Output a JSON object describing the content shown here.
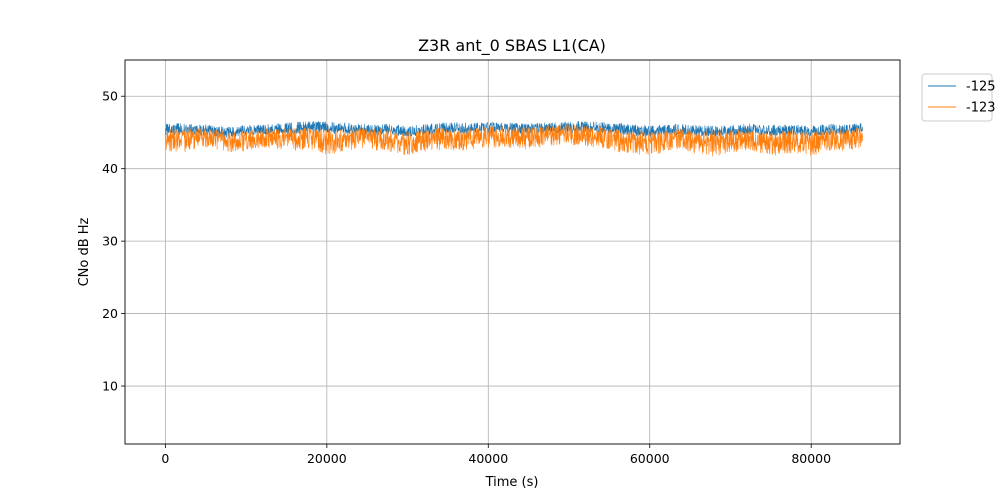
{
  "chart_data": {
    "type": "line",
    "title": "Z3R ant_0 SBAS L1(CA)",
    "xlabel": "Time (s)",
    "ylabel": "CNo dB Hz",
    "xlim": [
      -5000,
      91000
    ],
    "ylim": [
      2,
      55
    ],
    "xticks": [
      0,
      20000,
      40000,
      60000,
      80000
    ],
    "xtick_labels": [
      "0",
      "20000",
      "40000",
      "60000",
      "80000"
    ],
    "yticks": [
      10,
      20,
      30,
      40,
      50
    ],
    "ytick_labels": [
      "10",
      "20",
      "30",
      "40",
      "50"
    ],
    "grid": true,
    "legend_position": "upper-right-outside",
    "x_range_of_series": [
      0,
      86400
    ],
    "series": [
      {
        "name": "-125",
        "color": "#1f77b4",
        "x": [
          0,
          2000,
          4000,
          6000,
          8000,
          10000,
          12000,
          14000,
          16000,
          18000,
          20000,
          22000,
          24000,
          26000,
          28000,
          30000,
          32000,
          34000,
          36000,
          38000,
          40000,
          42000,
          44000,
          46000,
          48000,
          50000,
          52000,
          54000,
          56000,
          58000,
          60000,
          62000,
          64000,
          66000,
          68000,
          70000,
          72000,
          74000,
          76000,
          78000,
          80000,
          82000,
          84000,
          86000
        ],
        "mean": [
          45.2,
          45.3,
          45.2,
          45.1,
          44.9,
          45.1,
          45.2,
          45.3,
          45.4,
          45.6,
          45.5,
          45.4,
          45.3,
          45.2,
          45.3,
          44.9,
          45.2,
          45.4,
          45.5,
          45.4,
          45.5,
          45.6,
          45.3,
          45.4,
          45.5,
          45.5,
          45.6,
          45.5,
          45.4,
          45.2,
          45.0,
          45.2,
          45.3,
          45.1,
          45.0,
          45.1,
          45.3,
          45.2,
          45.1,
          45.2,
          45.0,
          45.3,
          45.2,
          45.5
        ],
        "min": [
          44.6,
          44.7,
          44.6,
          44.5,
          44.3,
          44.6,
          44.7,
          44.7,
          44.8,
          45.0,
          44.9,
          44.8,
          44.7,
          44.6,
          44.7,
          44.3,
          44.6,
          44.8,
          44.9,
          44.8,
          44.9,
          45.0,
          44.7,
          44.8,
          44.9,
          44.9,
          45.0,
          44.9,
          44.8,
          44.6,
          44.4,
          44.6,
          44.7,
          44.5,
          44.4,
          44.5,
          44.7,
          44.6,
          44.5,
          44.6,
          44.4,
          44.7,
          44.6,
          44.9
        ],
        "max": [
          46.2,
          46.3,
          46.2,
          46.0,
          45.8,
          46.0,
          46.1,
          46.3,
          46.4,
          46.6,
          46.5,
          46.4,
          46.2,
          46.1,
          46.2,
          45.9,
          46.1,
          46.3,
          46.4,
          46.3,
          46.4,
          46.5,
          46.2,
          46.3,
          46.4,
          46.5,
          46.6,
          46.4,
          46.3,
          46.1,
          45.9,
          46.1,
          46.2,
          46.0,
          45.9,
          46.0,
          46.2,
          46.1,
          46.0,
          46.1,
          45.9,
          46.2,
          46.1,
          46.4
        ]
      },
      {
        "name": "-123",
        "color": "#ff7f0e",
        "x": [
          0,
          2000,
          4000,
          6000,
          8000,
          10000,
          12000,
          14000,
          16000,
          18000,
          20000,
          22000,
          24000,
          26000,
          28000,
          30000,
          32000,
          34000,
          36000,
          38000,
          40000,
          42000,
          44000,
          46000,
          48000,
          50000,
          52000,
          54000,
          56000,
          58000,
          60000,
          62000,
          64000,
          66000,
          68000,
          70000,
          72000,
          74000,
          76000,
          78000,
          80000,
          82000,
          84000,
          86000
        ],
        "mean": [
          44.3,
          44.1,
          44.6,
          44.2,
          43.9,
          44.0,
          44.3,
          44.4,
          44.2,
          44.3,
          43.8,
          44.1,
          44.5,
          44.3,
          44.0,
          43.5,
          44.1,
          44.2,
          44.0,
          44.3,
          44.5,
          44.6,
          44.3,
          44.4,
          44.7,
          44.8,
          44.6,
          44.5,
          44.0,
          43.8,
          43.4,
          44.1,
          44.3,
          43.7,
          43.5,
          43.9,
          44.2,
          43.8,
          43.6,
          43.9,
          43.6,
          44.0,
          43.9,
          44.3
        ],
        "min": [
          42.5,
          42.2,
          42.8,
          42.6,
          42.3,
          42.4,
          42.8,
          42.7,
          42.5,
          42.6,
          41.9,
          42.3,
          42.8,
          42.5,
          42.3,
          41.8,
          42.4,
          42.6,
          42.4,
          42.7,
          42.9,
          43.0,
          42.7,
          42.8,
          43.2,
          43.3,
          43.0,
          42.9,
          42.3,
          42.1,
          41.6,
          42.5,
          42.7,
          41.9,
          41.5,
          42.2,
          42.6,
          42.0,
          41.7,
          42.2,
          41.8,
          42.4,
          42.3,
          42.8
        ],
        "max": [
          45.6,
          45.5,
          45.7,
          45.4,
          45.2,
          45.3,
          45.5,
          45.7,
          45.6,
          45.7,
          45.5,
          45.5,
          45.7,
          45.6,
          45.4,
          45.1,
          45.5,
          45.6,
          45.5,
          45.6,
          45.8,
          45.9,
          45.7,
          45.8,
          46.0,
          46.1,
          46.0,
          45.8,
          45.5,
          45.3,
          45.0,
          45.5,
          45.6,
          45.2,
          45.1,
          45.4,
          45.6,
          45.3,
          45.1,
          45.4,
          45.2,
          45.5,
          45.4,
          45.8
        ]
      }
    ]
  }
}
